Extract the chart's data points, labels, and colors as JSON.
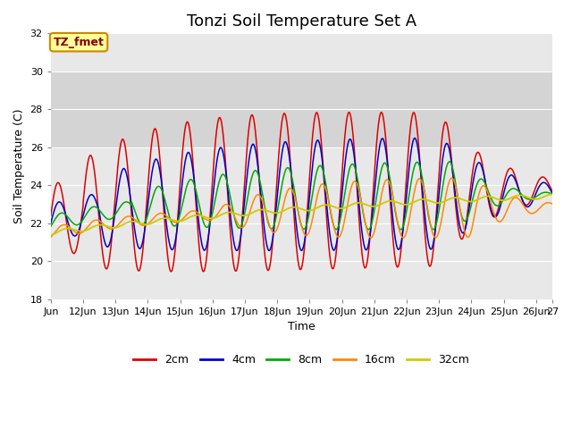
{
  "title": "Tonzi Soil Temperature Set A",
  "xlabel": "Time",
  "ylabel": "Soil Temperature (C)",
  "ylim": [
    18,
    32
  ],
  "xlim": [
    0,
    15.5
  ],
  "fig_bg_color": "#ffffff",
  "plot_bg_color": "#e8e8e8",
  "shaded_region": [
    26,
    30
  ],
  "shaded_color": "#d4d4d4",
  "legend_labels": [
    "2cm",
    "4cm",
    "8cm",
    "16cm",
    "32cm"
  ],
  "legend_colors": [
    "#dd0000",
    "#0000cc",
    "#00aa00",
    "#ff8800",
    "#cccc00"
  ],
  "annotation_label": "TZ_fmet",
  "annotation_bg": "#ffff99",
  "annotation_border": "#cc8800",
  "xtick_labels": [
    "Jun",
    "12Jun",
    "13Jun",
    "14Jun",
    "15Jun",
    "16Jun",
    "17Jun",
    "18Jun",
    "19Jun",
    "20Jun",
    "21Jun",
    "22Jun",
    "23Jun",
    "24Jun",
    "25Jun",
    "26Jun",
    "27"
  ],
  "xtick_positions": [
    0,
    1,
    2,
    3,
    4,
    5,
    6,
    7,
    8,
    9,
    10,
    11,
    12,
    13,
    14,
    15,
    15.5
  ],
  "ytick_positions": [
    18,
    20,
    22,
    24,
    26,
    28,
    30,
    32
  ],
  "title_fontsize": 13,
  "axis_fontsize": 9,
  "tick_fontsize": 8,
  "grid_color": "#ffffff"
}
